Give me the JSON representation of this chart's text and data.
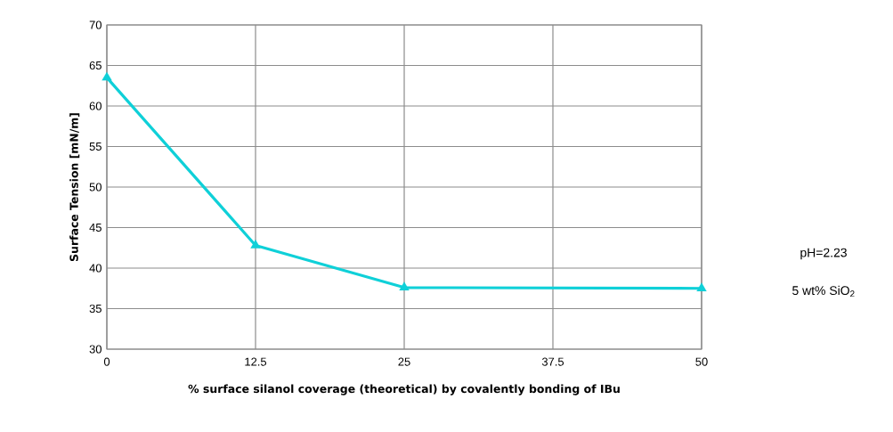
{
  "chart_data": {
    "type": "line",
    "xlabel": "% surface silanol coverage (theoretical) by covalently bonding of IBu",
    "ylabel": "Surface Tension [mN/m]",
    "x": [
      0,
      12.5,
      25,
      50
    ],
    "series": [
      {
        "color": "#0fd0d8",
        "values": [
          63.5,
          42.8,
          37.6,
          37.5
        ]
      }
    ],
    "xlim": [
      0,
      50
    ],
    "xticks": [
      0,
      12.5,
      25,
      37.5,
      50
    ],
    "ylim": [
      30,
      70
    ],
    "yticks": [
      30,
      35,
      40,
      45,
      50,
      55,
      60,
      65,
      70
    ],
    "grid": true,
    "marker": "triangle",
    "line_style": "solid",
    "annotations": [
      "pH=2.23",
      "5 wt% SiO$_{2}$"
    ]
  }
}
